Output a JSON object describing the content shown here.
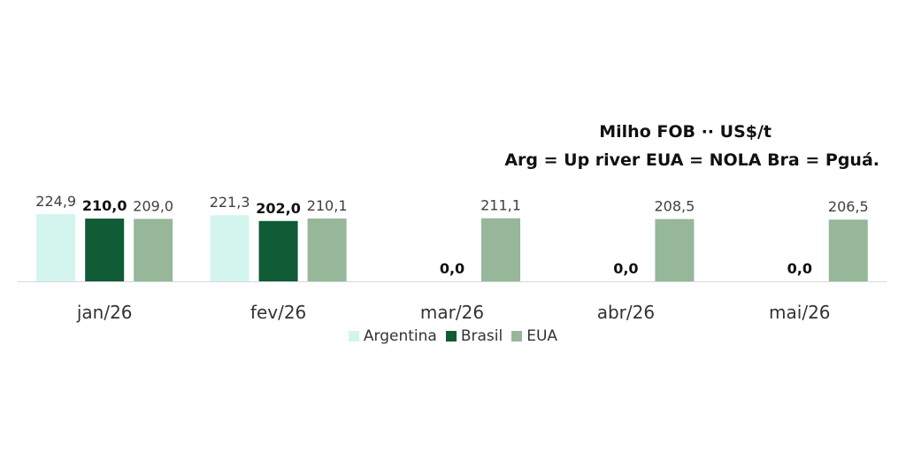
{
  "chart_data": {
    "type": "bar",
    "title": "Milho FOB ·· US$/t",
    "subtitle": "Arg =  Up river EUA = NOLA Bra = Pguá.",
    "categories": [
      "jan/26",
      "fev/26",
      "mar/26",
      "abr/26",
      "mai/26"
    ],
    "series": [
      {
        "name": "Argentina",
        "color": "#d4f5ee",
        "values": [
          224.9,
          221.3,
          0.0,
          0.0,
          0.0
        ],
        "labels": [
          "224,9",
          "221,3",
          "",
          "",
          ""
        ],
        "bold": false
      },
      {
        "name": "Brasil",
        "color": "#0f5c36",
        "values": [
          210.0,
          202.0,
          0.0,
          0.0,
          0.0
        ],
        "labels": [
          "210,0",
          "202,0",
          "0,0",
          "0,0",
          "0,0"
        ],
        "bold": true
      },
      {
        "name": "EUA",
        "color": "#96b79a",
        "values": [
          209.0,
          210.1,
          211.1,
          208.5,
          206.5
        ],
        "labels": [
          "209,0",
          "210,1",
          "211,1",
          "208,5",
          "206,5"
        ],
        "bold": false
      }
    ],
    "legend_position": "bottom",
    "grid": false
  }
}
